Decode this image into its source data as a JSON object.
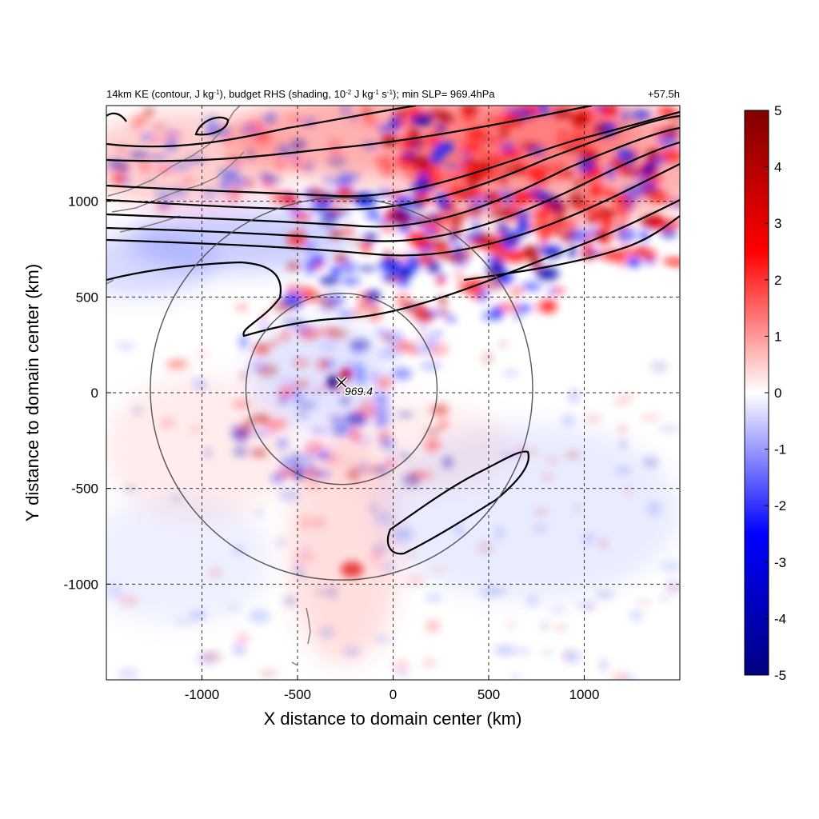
{
  "chart_data": {
    "type": "heatmap",
    "title": "14km KE (contour, J kg⁻¹), budget RHS (shading, 10⁻² J kg⁻¹ s⁻¹); min SLP= 969.4hPa",
    "title_parts": {
      "part1": "14km KE (contour, J kg",
      "sup1": "-1",
      "part2": "), budget RHS (shading, 10",
      "sup2": "-2",
      "part3": " J kg",
      "sup3": "-1",
      "part4": " s",
      "sup4": "-1",
      "part5": "); min SLP= 969.4hPa"
    },
    "time_label": "+57.5h",
    "xlabel": "X distance to domain center (km)",
    "ylabel": "Y distance to domain center (km)",
    "xlim": [
      -1500,
      1500
    ],
    "ylim": [
      -1500,
      1500
    ],
    "xticks": [
      -1000,
      -500,
      0,
      500,
      1000
    ],
    "yticks": [
      -1000,
      -500,
      0,
      500,
      1000
    ],
    "grid": "dashed",
    "colorbar": {
      "min": -5,
      "max": 5,
      "ticks": [
        5,
        4,
        3,
        2,
        1,
        0,
        -1,
        -2,
        -3,
        -4,
        -5
      ],
      "colors": [
        "#000080",
        "#0000ff",
        "#ffffff",
        "#ff0000",
        "#800000"
      ],
      "placement": "right"
    },
    "storm_center": {
      "x": -270,
      "y": 20,
      "label": "969.4"
    },
    "range_rings_km": [
      500,
      1000
    ],
    "colors": {
      "positive": "#e02020",
      "negative": "#2030d0",
      "contour": "#000000",
      "ring": "#555555",
      "coast": "#808080"
    }
  }
}
